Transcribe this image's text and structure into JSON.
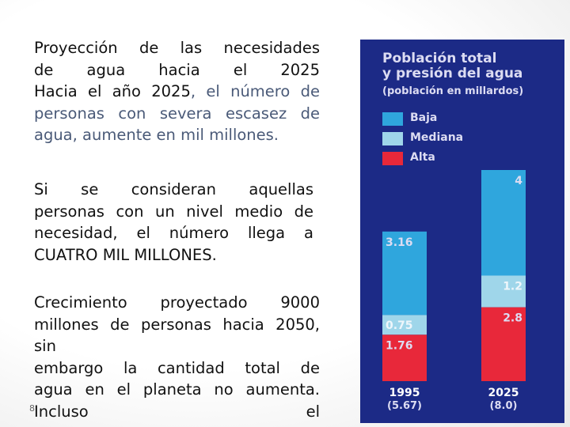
{
  "text": {
    "p1": {
      "line1": "Proyección de las necesidades",
      "line2": "de agua hacia el 2025",
      "line3_a": "Hacia el año 2025",
      "line3_b": ", el número de",
      "line4": "personas con severa escasez de",
      "line5": "agua, aumente en mil millones."
    },
    "p2": {
      "line1": "Si se consideran aquellas",
      "line2": "personas con un nivel medio de",
      "line3": "necesidad, el número llega a",
      "line4": "CUATRO MIL MILLONES."
    },
    "p3": {
      "line1": "Crecimiento proyectado 9000",
      "line2": "millones de personas hacia 2050,",
      "line3": "sin",
      "line4": "embargo la cantidad total de",
      "line5": "agua en el planeta no aumenta.",
      "line6": "Incluso el"
    },
    "page_mark": "8"
  },
  "colors": {
    "panel": "#1c2a86",
    "baja": "#2fa6dd",
    "mediana": "#9fd6ea",
    "alta": "#e8283a",
    "chart_text": "#dcdcf2"
  },
  "chart_data": {
    "type": "bar",
    "stacked": true,
    "title": "Población total y presión del agua",
    "subtitle": "(población en millardos)",
    "categories": [
      "1995",
      "2025"
    ],
    "category_totals": [
      "(5.67)",
      "(8.0)"
    ],
    "series": [
      {
        "name": "Alta",
        "values": [
          1.76,
          2.8
        ]
      },
      {
        "name": "Mediana",
        "values": [
          0.75,
          1.2
        ]
      },
      {
        "name": "Baja",
        "values": [
          3.16,
          4.0
        ]
      }
    ],
    "legend": [
      "Baja",
      "Mediana",
      "Alta"
    ],
    "legend_position": "top-left",
    "ylim": [
      0,
      8.0
    ],
    "grid": false
  }
}
